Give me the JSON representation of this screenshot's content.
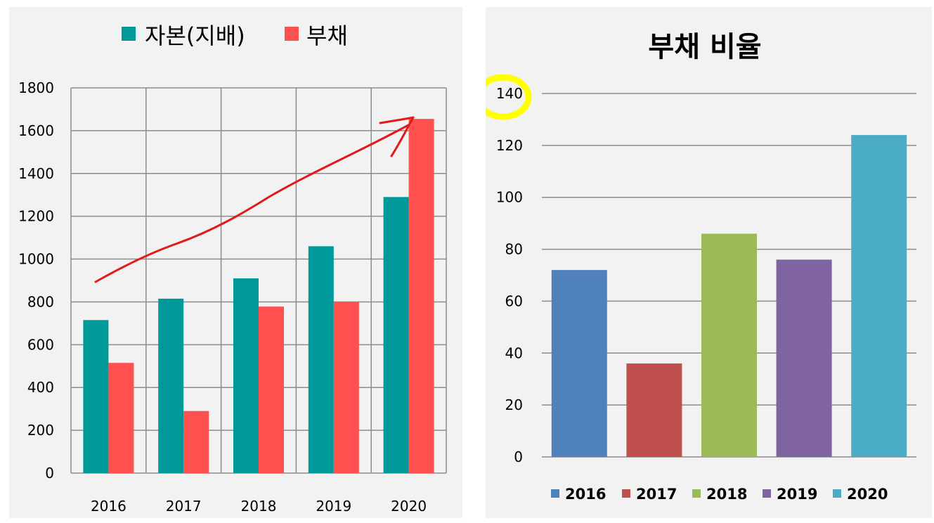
{
  "chart_data": [
    {
      "type": "bar",
      "title": "",
      "categories": [
        "2016",
        "2017",
        "2018",
        "2019",
        "2020"
      ],
      "series": [
        {
          "name": "자본(지배)",
          "color": "#009999",
          "values": [
            715,
            815,
            910,
            1060,
            1290
          ]
        },
        {
          "name": "부채",
          "color": "#ff5050",
          "values": [
            515,
            290,
            778,
            800,
            1655
          ]
        }
      ],
      "yticks": [
        "0",
        "200",
        "400",
        "600",
        "800",
        "1000",
        "1200",
        "1400",
        "1600",
        "1800"
      ],
      "ylim": [
        0,
        1800
      ],
      "grid": true,
      "legend": "top",
      "annotation": "red hand-drawn arrow rising from 2016 to 2020"
    },
    {
      "type": "bar",
      "title": "부채 비율",
      "categories": [
        "2016",
        "2017",
        "2018",
        "2019",
        "2020"
      ],
      "values": [
        72,
        36,
        86,
        76,
        124
      ],
      "colors": [
        "#4f81bd",
        "#c0504d",
        "#9bbb59",
        "#8064a2",
        "#4bacc6"
      ],
      "yticks": [
        "0",
        "20",
        "40",
        "60",
        "80",
        "100",
        "120",
        "140"
      ],
      "ylim": [
        0,
        140
      ],
      "grid": true,
      "legend": "bottom",
      "legend_entries": [
        "2016",
        "2017",
        "2018",
        "2019",
        "2020"
      ],
      "annotation": "yellow highlight over 140 tick label"
    }
  ]
}
